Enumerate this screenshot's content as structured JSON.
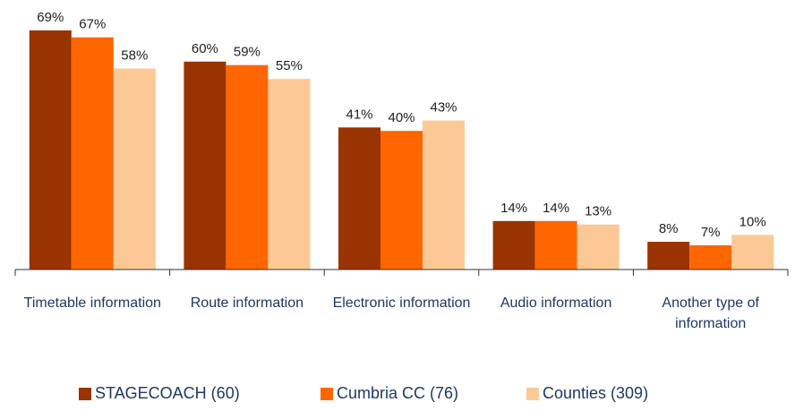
{
  "chart_data": {
    "type": "bar",
    "categories": [
      "Timetable information",
      "Route information",
      "Electronic information",
      "Audio information",
      "Another type of information"
    ],
    "series": [
      {
        "name": "STAGECOACH (60)",
        "color": "#993300",
        "values": [
          69,
          60,
          41,
          14,
          8
        ],
        "value_labels": [
          "69%",
          "60%",
          "41%",
          "14%",
          "8%"
        ]
      },
      {
        "name": "Cumbria CC (76)",
        "color": "#ff6600",
        "values": [
          67,
          59,
          40,
          14,
          7
        ],
        "value_labels": [
          "67%",
          "59%",
          "40%",
          "14%",
          "7%"
        ]
      },
      {
        "name": "Counties (309)",
        "color": "#fcc996",
        "values": [
          58,
          55,
          43,
          13,
          10
        ],
        "value_labels": [
          "58%",
          "55%",
          "43%",
          "13%",
          "10%"
        ]
      }
    ],
    "legend": "bottom"
  }
}
